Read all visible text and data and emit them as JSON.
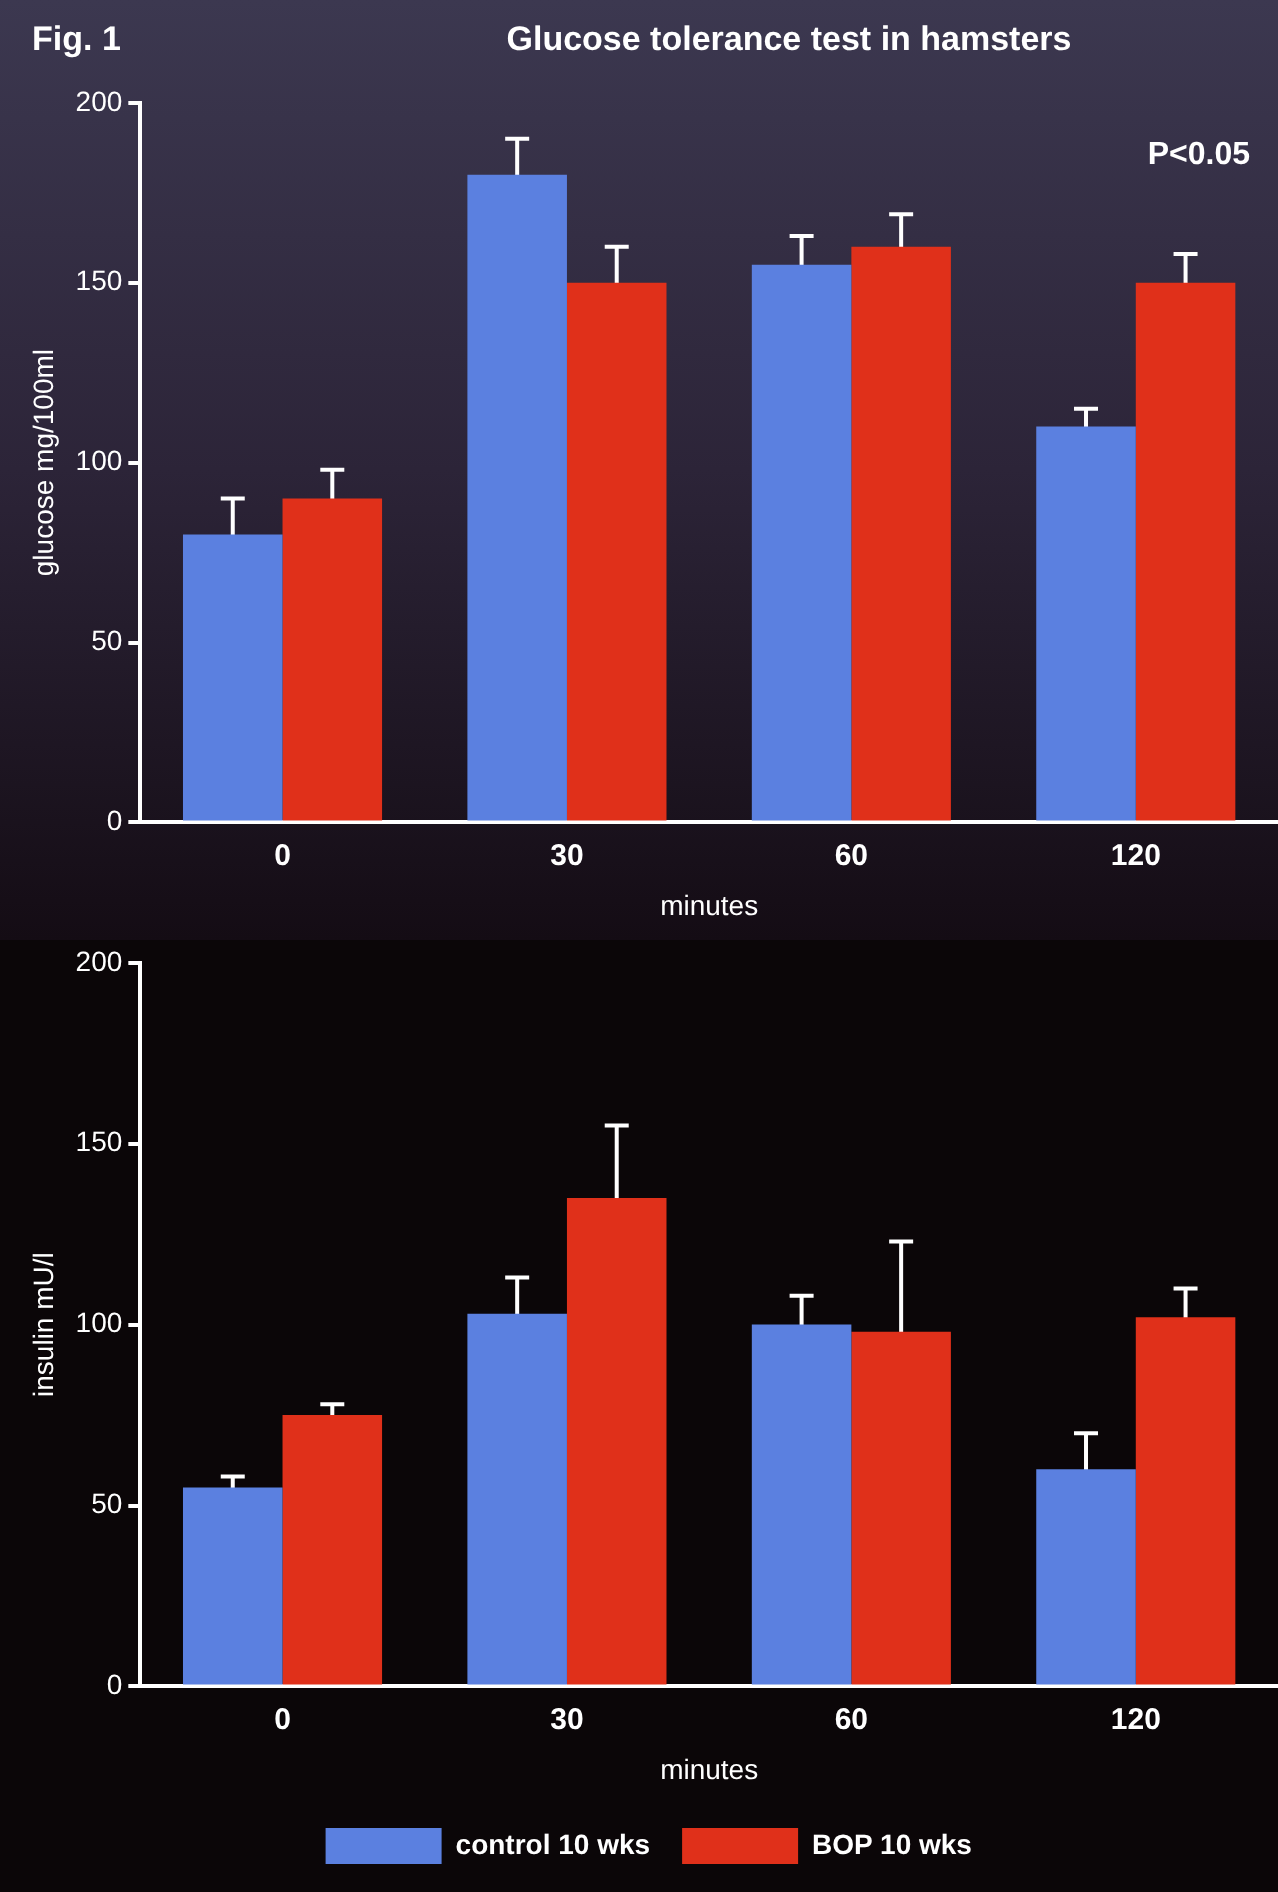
{
  "chart_data": [
    {
      "type": "bar",
      "title": "Glucose tolerance test in hamsters",
      "annotations": [
        "Fig. 1",
        "P<0.05"
      ],
      "xlabel": "minutes",
      "ylabel": "glucose mg/100ml",
      "categories": [
        "0",
        "30",
        "60",
        "120"
      ],
      "ylim": [
        0,
        200
      ],
      "yticks": [
        0,
        50,
        100,
        150,
        200
      ],
      "legend": false,
      "series": [
        {
          "color": "#5b80e0",
          "values": [
            80,
            180,
            155,
            110
          ],
          "errors": [
            10,
            10,
            8,
            5
          ]
        },
        {
          "color": "#e0301a",
          "values": [
            90,
            150,
            160,
            150
          ],
          "errors": [
            8,
            10,
            9,
            8
          ]
        }
      ]
    },
    {
      "type": "bar",
      "xlabel": "minutes",
      "ylabel": "insulin mU/l",
      "categories": [
        "0",
        "30",
        "60",
        "120"
      ],
      "ylim": [
        0,
        200
      ],
      "yticks": [
        0,
        50,
        100,
        150,
        200
      ],
      "legend": "bottom",
      "series": [
        {
          "name": "control 10 wks",
          "color": "#5b80e0",
          "values": [
            55,
            103,
            100,
            60
          ],
          "errors": [
            3,
            10,
            8,
            10
          ]
        },
        {
          "name": "BOP 10 wks",
          "color": "#e0301a",
          "values": [
            75,
            135,
            98,
            102
          ],
          "errors": [
            3,
            20,
            25,
            8
          ]
        }
      ]
    }
  ]
}
